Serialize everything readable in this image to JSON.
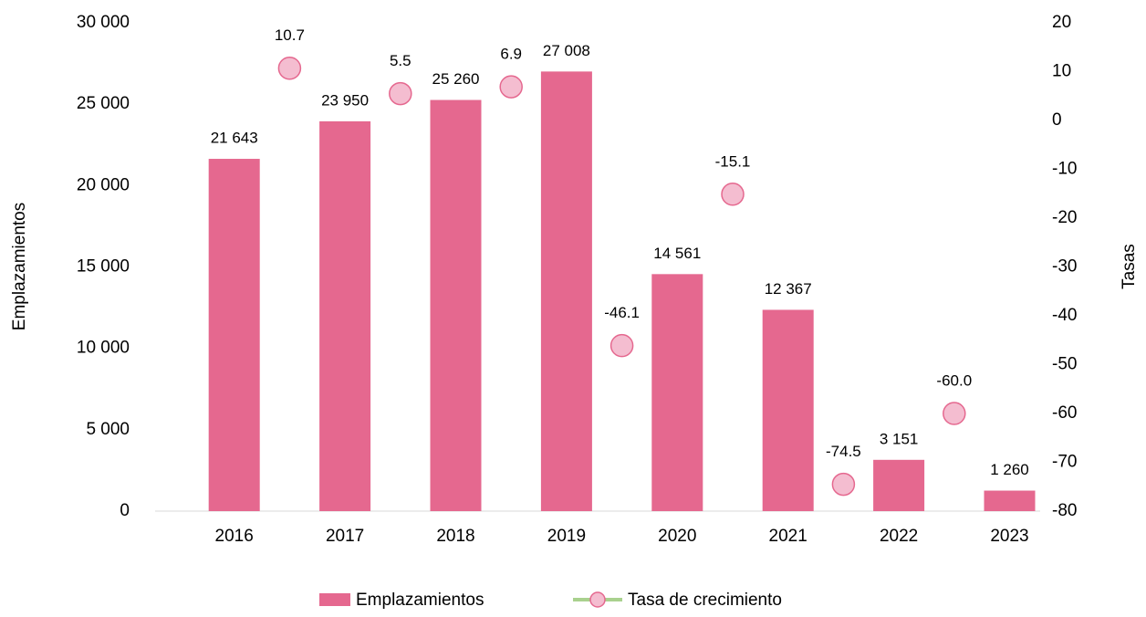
{
  "chart_data": {
    "type": "bar",
    "categories": [
      "2016",
      "2017",
      "2018",
      "2019",
      "2020",
      "2021",
      "2022",
      "2023"
    ],
    "ylabel": "Emplazamientos",
    "y2label": "Tasas",
    "ylim": [
      0,
      30000
    ],
    "yticks": [
      {
        "value": 0,
        "label": "0"
      },
      {
        "value": 5000,
        "label": "5 000"
      },
      {
        "value": 10000,
        "label": "10 000"
      },
      {
        "value": 15000,
        "label": "15 000"
      },
      {
        "value": 20000,
        "label": "20 000"
      },
      {
        "value": 25000,
        "label": "25 000"
      },
      {
        "value": 30000,
        "label": "30 000"
      }
    ],
    "y2lim": [
      -80,
      20
    ],
    "y2ticks": [
      -80,
      -70,
      -60,
      -50,
      -40,
      -30,
      -20,
      -10,
      0,
      10,
      20
    ],
    "legend": "bottom",
    "series": [
      {
        "name": "Emplazamientos",
        "type": "bar",
        "color": "#e5688f",
        "values": [
          21643,
          23950,
          25260,
          27008,
          14561,
          12367,
          3151,
          1260
        ],
        "value_labels": [
          "21 643",
          "23 950",
          "25 260",
          "27 008",
          "14 561",
          "12 367",
          "3 151",
          "1 260"
        ]
      },
      {
        "name": "Tasa de crecimiento",
        "type": "scatter",
        "axis": "y2",
        "color": "#f4bdd0",
        "edgecolor": "#e5688f",
        "line_color": "#a9d18e",
        "values": [
          null,
          10.7,
          5.5,
          6.9,
          -46.1,
          -15.1,
          -74.5,
          -60.0
        ],
        "value_labels": [
          null,
          "10.7",
          "5.5",
          "6.9",
          "-46.1",
          "-15.1",
          "-74.5",
          "-60.0"
        ]
      }
    ]
  }
}
